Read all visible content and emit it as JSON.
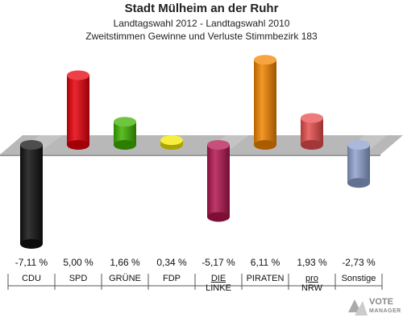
{
  "chart_data": {
    "type": "bar",
    "title": "Stadt Mülheim an der Ruhr",
    "subtitle": "Landtagswahl 2012 - Landtagswahl 2010",
    "subtitle2": "Zweitstimmen Gewinne und Verluste Stimmbezirk 183",
    "categories": [
      {
        "line1": "CDU",
        "line2": ""
      },
      {
        "line1": "SPD",
        "line2": ""
      },
      {
        "line1": "GRÜNE",
        "line2": ""
      },
      {
        "line1": "FDP",
        "line2": ""
      },
      {
        "line1": "DIE",
        "line2": "LINKE"
      },
      {
        "line1": "PIRATEN",
        "line2": ""
      },
      {
        "line1": "pro",
        "line2": "NRW"
      },
      {
        "line1": "Sonstige",
        "line2": ""
      }
    ],
    "values": [
      -7.11,
      5.0,
      1.66,
      0.34,
      -5.17,
      6.11,
      1.93,
      -2.73
    ],
    "value_labels": [
      "-7,11 %",
      "5,00 %",
      "1,66 %",
      "0,34 %",
      "-5,17 %",
      "6,11 %",
      "1,93 %",
      "-2,73 %"
    ],
    "colors": [
      "#111111",
      "#e8000b",
      "#3fb200",
      "#f4ea00",
      "#b3164f",
      "#f28500",
      "#e84e4e",
      "#8ea1cf"
    ],
    "grid": false,
    "legend": "none"
  },
  "logo": {
    "line1": "VOTE",
    "line2": "MANAGER"
  }
}
